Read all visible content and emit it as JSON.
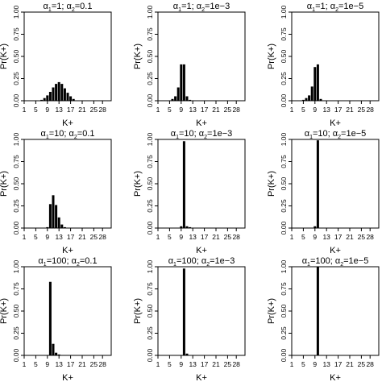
{
  "chart_data": [
    {
      "type": "bar",
      "title_parts": [
        "α",
        "1",
        "=1; α",
        "2",
        "=0.1"
      ],
      "xlabel": "K+",
      "ylabel": "Pr(K+)",
      "xlim": [
        1,
        31
      ],
      "ylim": [
        0,
        1
      ],
      "xticks": [
        1,
        5,
        9,
        13,
        17,
        21,
        25,
        28
      ],
      "yticks": [
        "0.00",
        "0.25",
        "0.50",
        "0.75",
        "1.00"
      ],
      "x": [
        7,
        8,
        9,
        10,
        11,
        12,
        13,
        14,
        15,
        16,
        17,
        18
      ],
      "values": [
        0.01,
        0.03,
        0.06,
        0.1,
        0.15,
        0.19,
        0.21,
        0.19,
        0.14,
        0.09,
        0.05,
        0.02
      ]
    },
    {
      "type": "bar",
      "title_parts": [
        "α",
        "1",
        "=1; α",
        "2",
        "=1e−3"
      ],
      "xlabel": "K+",
      "ylabel": "Pr(K+)",
      "xlim": [
        1,
        31
      ],
      "ylim": [
        0,
        1
      ],
      "xticks": [
        1,
        5,
        9,
        13,
        17,
        21,
        25,
        28
      ],
      "yticks": [
        "0.00",
        "0.25",
        "0.50",
        "0.75",
        "1.00"
      ],
      "x": [
        6,
        7,
        8,
        9,
        10,
        11,
        12
      ],
      "values": [
        0.02,
        0.05,
        0.15,
        0.41,
        0.41,
        0.05,
        0.01
      ]
    },
    {
      "type": "bar",
      "title_parts": [
        "α",
        "1",
        "=1; α",
        "2",
        "=1e−5"
      ],
      "xlabel": "K+",
      "ylabel": "Pr(K+)",
      "xlim": [
        1,
        31
      ],
      "ylim": [
        0,
        1
      ],
      "xticks": [
        1,
        5,
        9,
        13,
        17,
        21,
        25,
        28
      ],
      "yticks": [
        "0.00",
        "0.25",
        "0.50",
        "0.75",
        "1.00"
      ],
      "x": [
        5,
        6,
        7,
        8,
        9,
        10,
        11
      ],
      "values": [
        0.01,
        0.03,
        0.06,
        0.16,
        0.38,
        0.41,
        0.02
      ]
    },
    {
      "type": "bar",
      "title_parts": [
        "α",
        "1",
        "=10; α",
        "2",
        "=0.1"
      ],
      "xlabel": "K+",
      "ylabel": "Pr(K+)",
      "xlim": [
        1,
        31
      ],
      "ylim": [
        0,
        1
      ],
      "xticks": [
        1,
        5,
        9,
        13,
        17,
        21,
        25,
        28
      ],
      "yticks": [
        "0.00",
        "0.25",
        "0.50",
        "0.75",
        "1.00"
      ],
      "x": [
        9,
        10,
        11,
        12,
        13,
        14,
        15
      ],
      "values": [
        0.01,
        0.27,
        0.37,
        0.26,
        0.12,
        0.04,
        0.01
      ]
    },
    {
      "type": "bar",
      "title_parts": [
        "α",
        "1",
        "=10; α",
        "2",
        "=1e−3"
      ],
      "xlabel": "K+",
      "ylabel": "Pr(K+)",
      "xlim": [
        1,
        31
      ],
      "ylim": [
        0,
        1
      ],
      "xticks": [
        1,
        5,
        9,
        13,
        17,
        21,
        25,
        28
      ],
      "yticks": [
        "0.00",
        "0.25",
        "0.50",
        "0.75",
        "1.00"
      ],
      "x": [
        9,
        10,
        11,
        12
      ],
      "values": [
        0.02,
        0.98,
        0.02,
        0.01
      ]
    },
    {
      "type": "bar",
      "title_parts": [
        "α",
        "1",
        "=10; α",
        "2",
        "=1e−5"
      ],
      "xlabel": "K+",
      "ylabel": "Pr(K+)",
      "xlim": [
        1,
        31
      ],
      "ylim": [
        0,
        1
      ],
      "xticks": [
        1,
        5,
        9,
        13,
        17,
        21,
        25,
        28
      ],
      "yticks": [
        "0.00",
        "0.25",
        "0.50",
        "0.75",
        "1.00"
      ],
      "x": [
        9,
        10
      ],
      "values": [
        0.02,
        0.99
      ]
    },
    {
      "type": "bar",
      "title_parts": [
        "α",
        "1",
        "=100; α",
        "2",
        "=0.1"
      ],
      "xlabel": "K+",
      "ylabel": "Pr(K+)",
      "xlim": [
        1,
        31
      ],
      "ylim": [
        0,
        1
      ],
      "xticks": [
        1,
        5,
        9,
        13,
        17,
        21,
        25,
        28
      ],
      "yticks": [
        "0.00",
        "0.25",
        "0.50",
        "0.75",
        "1.00"
      ],
      "x": [
        10,
        11,
        12,
        13
      ],
      "values": [
        0.83,
        0.13,
        0.03,
        0.01
      ]
    },
    {
      "type": "bar",
      "title_parts": [
        "α",
        "1",
        "=100; α",
        "2",
        "=1e−3"
      ],
      "xlabel": "K+",
      "ylabel": "Pr(K+)",
      "xlim": [
        1,
        31
      ],
      "ylim": [
        0,
        1
      ],
      "xticks": [
        1,
        5,
        9,
        13,
        17,
        21,
        25,
        28
      ],
      "yticks": [
        "0.00",
        "0.25",
        "0.50",
        "0.75",
        "1.00"
      ],
      "x": [
        10,
        11
      ],
      "values": [
        0.98,
        0.02
      ]
    },
    {
      "type": "bar",
      "title_parts": [
        "α",
        "1",
        "=100; α",
        "2",
        "=1e−5"
      ],
      "xlabel": "K+",
      "ylabel": "Pr(K+)",
      "xlim": [
        1,
        31
      ],
      "ylim": [
        0,
        1
      ],
      "xticks": [
        1,
        5,
        9,
        13,
        17,
        21,
        25,
        28
      ],
      "yticks": [
        "0.00",
        "0.25",
        "0.50",
        "0.75",
        "1.00"
      ],
      "x": [
        10
      ],
      "values": [
        1.0
      ]
    }
  ]
}
